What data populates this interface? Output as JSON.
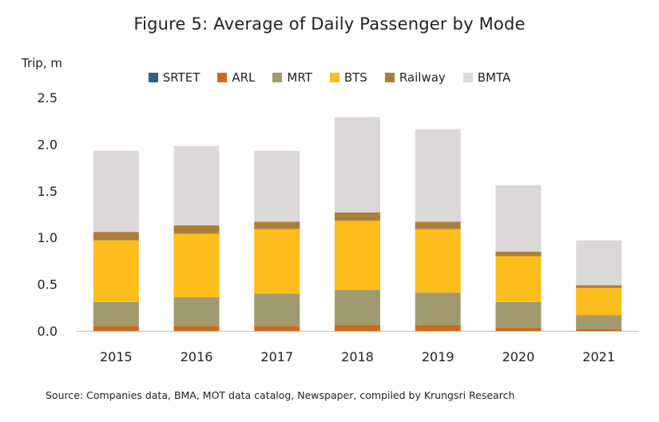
{
  "chart_data": {
    "type": "bar",
    "stacked": true,
    "title": "Figure 5: Average of Daily Passenger by Mode",
    "ylabel": "Trip, m",
    "xlabel": "",
    "categories": [
      "2015",
      "2016",
      "2017",
      "2018",
      "2019",
      "2020",
      "2021"
    ],
    "ylim": [
      0,
      2.5
    ],
    "yticks": [
      "0.0",
      "0.5",
      "1.0",
      "1.5",
      "2.0",
      "2.5"
    ],
    "legend_position": "top",
    "series": [
      {
        "name": "SRTET",
        "color": "#2e5f8a",
        "values": [
          0.0,
          0.0,
          0.0,
          0.0,
          0.0,
          0.0,
          0.0
        ]
      },
      {
        "name": "ARL",
        "color": "#d0671a",
        "values": [
          0.05,
          0.05,
          0.05,
          0.06,
          0.06,
          0.03,
          0.02
        ]
      },
      {
        "name": "MRT",
        "color": "#a19a6e",
        "values": [
          0.26,
          0.31,
          0.35,
          0.38,
          0.35,
          0.28,
          0.15
        ]
      },
      {
        "name": "BTS",
        "color": "#fdbd1d",
        "values": [
          0.66,
          0.68,
          0.69,
          0.74,
          0.68,
          0.49,
          0.29
        ]
      },
      {
        "name": "Railway",
        "color": "#a97f3b",
        "values": [
          0.09,
          0.09,
          0.08,
          0.09,
          0.08,
          0.05,
          0.03
        ]
      },
      {
        "name": "BMTA",
        "color": "#dcd8d8",
        "values": [
          0.87,
          0.85,
          0.76,
          1.02,
          0.99,
          0.71,
          0.48
        ]
      }
    ],
    "grid": false
  },
  "source": "Source:  Companies data, BMA, MOT data catalog, Newspaper, compiled by Krungsri Research"
}
